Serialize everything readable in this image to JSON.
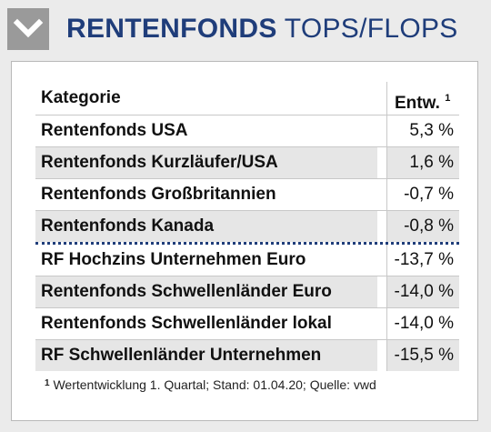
{
  "header": {
    "title_bold": "RENTENFONDS",
    "title_light": "TOPS/FLOPS",
    "icon": "chevron-down-icon"
  },
  "table": {
    "col_category": "Kategorie",
    "col_value": "Entw.",
    "col_value_footnote_mark": "1",
    "tops": [
      {
        "name": "Rentenfonds USA",
        "value": "5,3 %"
      },
      {
        "name": "Rentenfonds Kurzläufer/USA",
        "value": "1,6 %"
      },
      {
        "name": "Rentenfonds Großbritannien",
        "value": "-0,7 %"
      },
      {
        "name": "Rentenfonds Kanada",
        "value": "-0,8 %"
      }
    ],
    "flops": [
      {
        "name": "RF Hochzins Unternehmen Euro",
        "value": "-13,7 %"
      },
      {
        "name": "Rentenfonds Schwellenländer Euro",
        "value": "-14,0 %"
      },
      {
        "name": "Rentenfonds Schwellenländer lokal",
        "value": "-14,0 %"
      },
      {
        "name": "RF Schwellenländer Unternehmen",
        "value": "-15,5 %"
      }
    ]
  },
  "footnote": {
    "mark": "1",
    "text": "Wertentwicklung 1. Quartal; Stand: 01.04.20; Quelle: vwd"
  },
  "colors": {
    "brand_blue": "#1f3d7a",
    "row_shade": "#e6e6e6",
    "icon_box": "#9a9a9a"
  }
}
